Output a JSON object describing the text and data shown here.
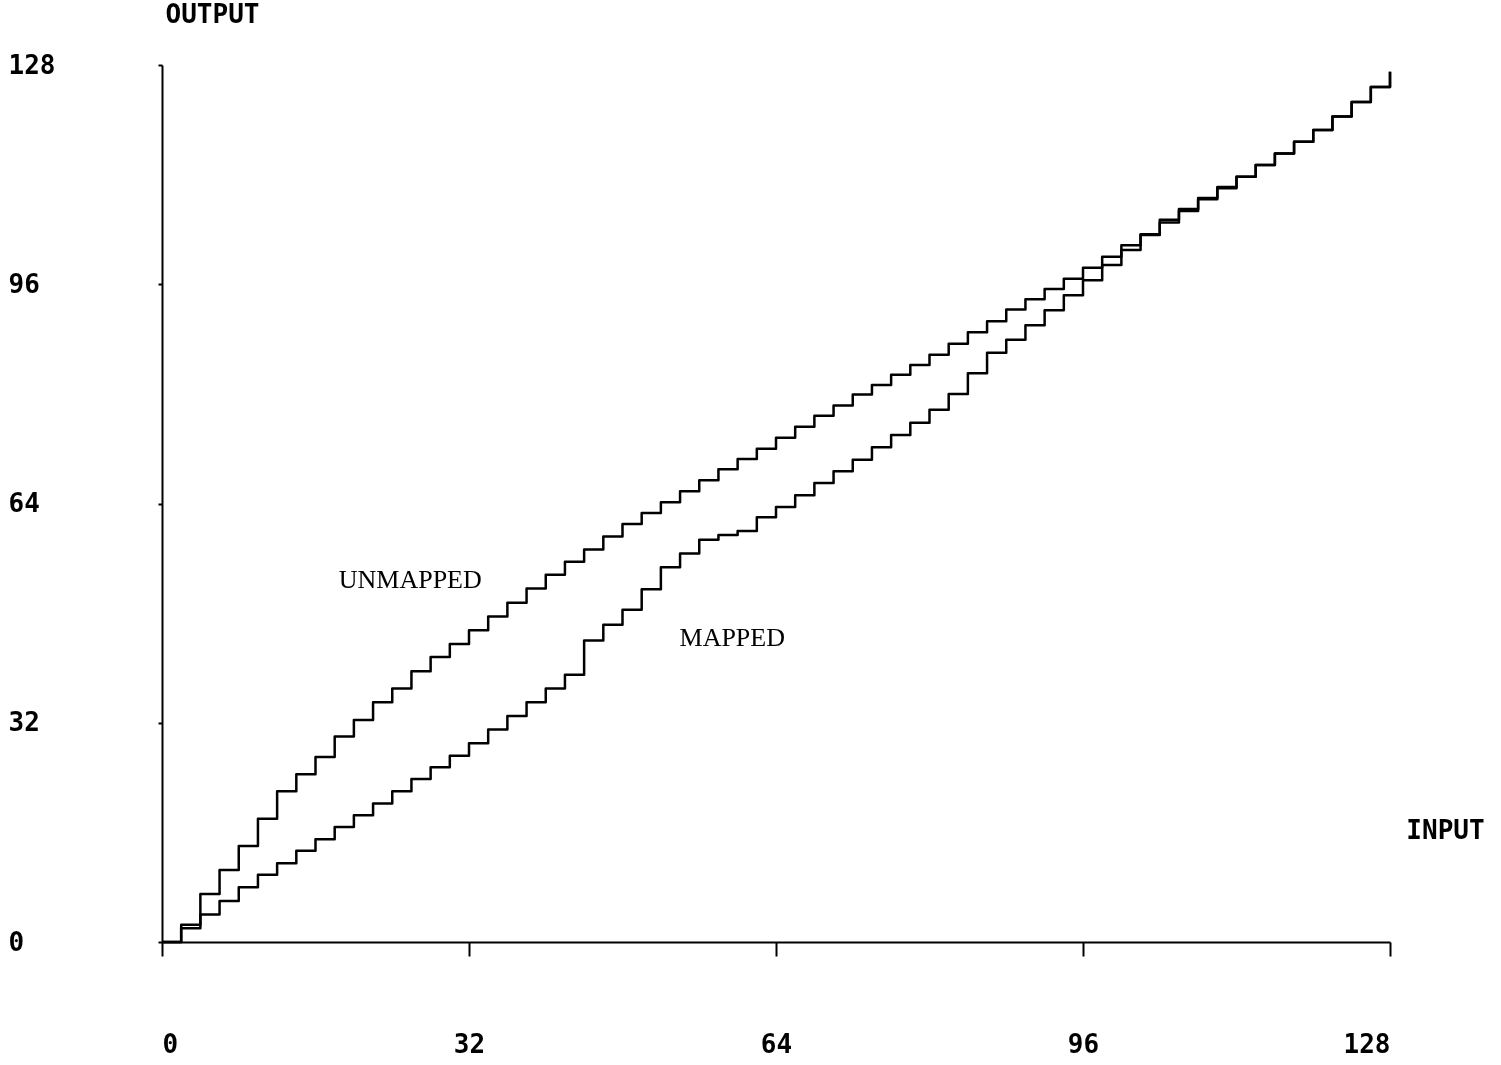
{
  "chart_data": {
    "type": "step",
    "xlabel": "INPUT",
    "ylabel": "OUTPUT",
    "xlim": [
      0,
      128
    ],
    "ylim": [
      0,
      128
    ],
    "xticks": [
      0,
      32,
      64,
      96,
      128
    ],
    "yticks": [
      0,
      32,
      64,
      96,
      128
    ],
    "grid": false,
    "marker": "none",
    "line_style": "solid",
    "series": [
      {
        "name": "UNMAPPED",
        "color": "#000000",
        "x": [
          0,
          2,
          4,
          6,
          8,
          10,
          12,
          14,
          16,
          18,
          20,
          22,
          24,
          26,
          28,
          30,
          32,
          34,
          36,
          38,
          40,
          42,
          44,
          46,
          48,
          50,
          52,
          54,
          56,
          58,
          60,
          62,
          64,
          66,
          68,
          70,
          72,
          74,
          76,
          78,
          80,
          82,
          84,
          86,
          88,
          90,
          92,
          94,
          96,
          98,
          100,
          102,
          104,
          106,
          108,
          110,
          112,
          114,
          116,
          118,
          120,
          122,
          124,
          126,
          128
        ],
        "values": [
          0,
          2.5,
          7,
          10.5,
          14,
          18,
          22,
          24.5,
          27,
          30,
          32.4,
          35,
          37,
          39.5,
          41.6,
          43.5,
          45.5,
          47.5,
          49.5,
          51.6,
          53.6,
          55.5,
          57.3,
          59.2,
          61,
          62.6,
          64.2,
          65.8,
          67.4,
          69,
          70.5,
          72,
          73.6,
          75.2,
          76.8,
          78.3,
          79.9,
          81.3,
          82.8,
          84.2,
          85.7,
          87.3,
          89,
          90.6,
          92.3,
          93.8,
          95.3,
          96.8,
          98.4,
          100,
          101.7,
          103.3,
          105,
          106.7,
          108.4,
          110,
          111.7,
          113.4,
          115.1,
          116.8,
          118.5,
          120.5,
          122.6,
          124.8,
          127
        ]
      },
      {
        "name": "MAPPED",
        "color": "#000000",
        "x": [
          0,
          2,
          4,
          6,
          8,
          10,
          12,
          14,
          16,
          18,
          20,
          22,
          24,
          26,
          28,
          30,
          32,
          34,
          36,
          38,
          40,
          42,
          44,
          46,
          48,
          50,
          52,
          54,
          56,
          58,
          60,
          62,
          64,
          66,
          68,
          70,
          72,
          74,
          76,
          78,
          80,
          82,
          84,
          86,
          88,
          90,
          92,
          94,
          96,
          98,
          100,
          102,
          104,
          106,
          108,
          110,
          112,
          114,
          116,
          118,
          120,
          122,
          124,
          126,
          128
        ],
        "values": [
          0,
          2,
          4,
          6,
          8,
          9.8,
          11.5,
          13.3,
          15,
          16.8,
          18.5,
          20.2,
          22,
          23.8,
          25.5,
          27.2,
          29,
          31,
          33,
          35,
          37,
          39,
          44,
          46.3,
          48.5,
          51.5,
          54.7,
          56.7,
          58.7,
          59.4,
          60,
          62,
          63.5,
          65.2,
          67,
          68.7,
          70.4,
          72.2,
          74,
          75.8,
          77.7,
          80,
          83,
          86,
          87.9,
          90,
          92.2,
          94.4,
          96.6,
          98.8,
          101,
          103.2,
          105.4,
          107,
          108.6,
          110.2,
          111.7,
          113.4,
          115.1,
          116.8,
          118.5,
          120.5,
          122.6,
          124.8,
          127
        ]
      }
    ]
  }
}
